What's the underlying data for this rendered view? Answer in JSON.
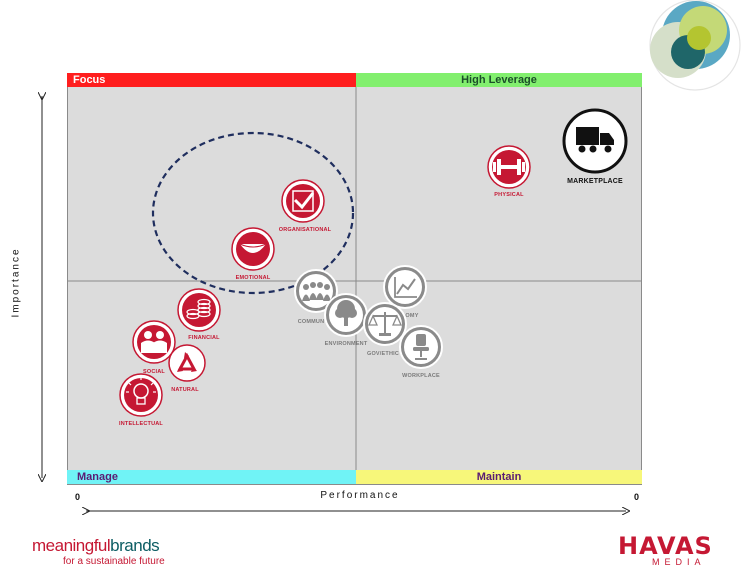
{
  "quadrants": {
    "top_left": "Focus",
    "top_right": "High Leverage",
    "bottom_left": "Manage",
    "bottom_right": "Maintain"
  },
  "axes": {
    "y_title": "Importance",
    "x_title": "Performance",
    "x_min": "0",
    "x_max": "0"
  },
  "items": {
    "organisational": "ORGANISATIONAL",
    "emotional": "EMOTIONAL",
    "physical": "PHYSICAL",
    "marketplace": "MARKETPLACE",
    "financial": "FINANCIAL",
    "social": "SOCIAL",
    "natural": "NATURAL",
    "intellectual": "INTELLECTUAL",
    "community": "COMMUN",
    "environment": "ENVIRONMENT",
    "economy": "OMY",
    "gov_ethics": "GOV/ETHIC",
    "workplace": "WORKPLACE"
  },
  "colors": {
    "red": "#c51833",
    "gray_icon": "#8a8a8a",
    "ellipse": "#1f2e5e",
    "focus": "#ff1e1e",
    "high_leverage": "#82ef6e",
    "manage": "#70f3f6",
    "maintain": "#f7f77a"
  },
  "branding": {
    "left_word1": "meaningful",
    "left_word2": "brands",
    "left_tagline": "for a sustainable future",
    "right_name": "HAVAS",
    "right_sub": "MEDIA"
  }
}
